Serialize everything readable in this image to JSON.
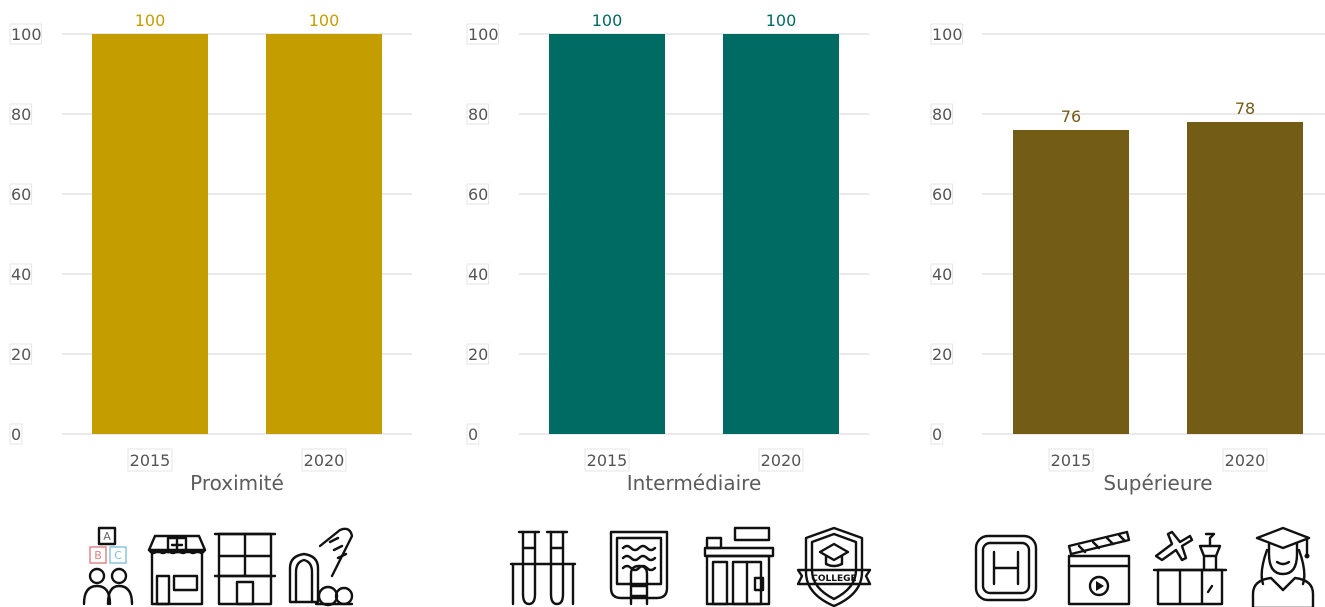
{
  "chart_data": [
    {
      "type": "bar",
      "title": "Proximité",
      "categories": [
        "2015",
        "2020"
      ],
      "values": [
        100,
        100
      ],
      "ylim": [
        0,
        100
      ],
      "yticks": [
        0,
        20,
        40,
        60,
        80,
        100
      ],
      "grid": true,
      "color": "#C49E00",
      "icons": [
        "abc-blocks-children-icon",
        "pharmacy-icon",
        "building-icon",
        "bakery-bread-icon"
      ]
    },
    {
      "type": "bar",
      "title": "Intermédiaire",
      "categories": [
        "2015",
        "2020"
      ],
      "values": [
        100,
        100
      ],
      "ylim": [
        0,
        100
      ],
      "yticks": [
        0,
        20,
        40,
        60,
        80,
        100
      ],
      "grid": true,
      "color": "#006B63",
      "icons": [
        "laboratory-test-tubes-icon",
        "swimming-pool-icon",
        "supermarket-icon",
        "college-badge-icon"
      ]
    },
    {
      "type": "bar",
      "title": "Supérieure",
      "categories": [
        "2015",
        "2020"
      ],
      "values": [
        76,
        78
      ],
      "ylim": [
        0,
        100
      ],
      "yticks": [
        0,
        20,
        40,
        60,
        80,
        100
      ],
      "grid": true,
      "color": "#735C16",
      "icons": [
        "hospital-icon",
        "cinema-icon",
        "airport-icon",
        "graduate-student-icon"
      ]
    }
  ]
}
